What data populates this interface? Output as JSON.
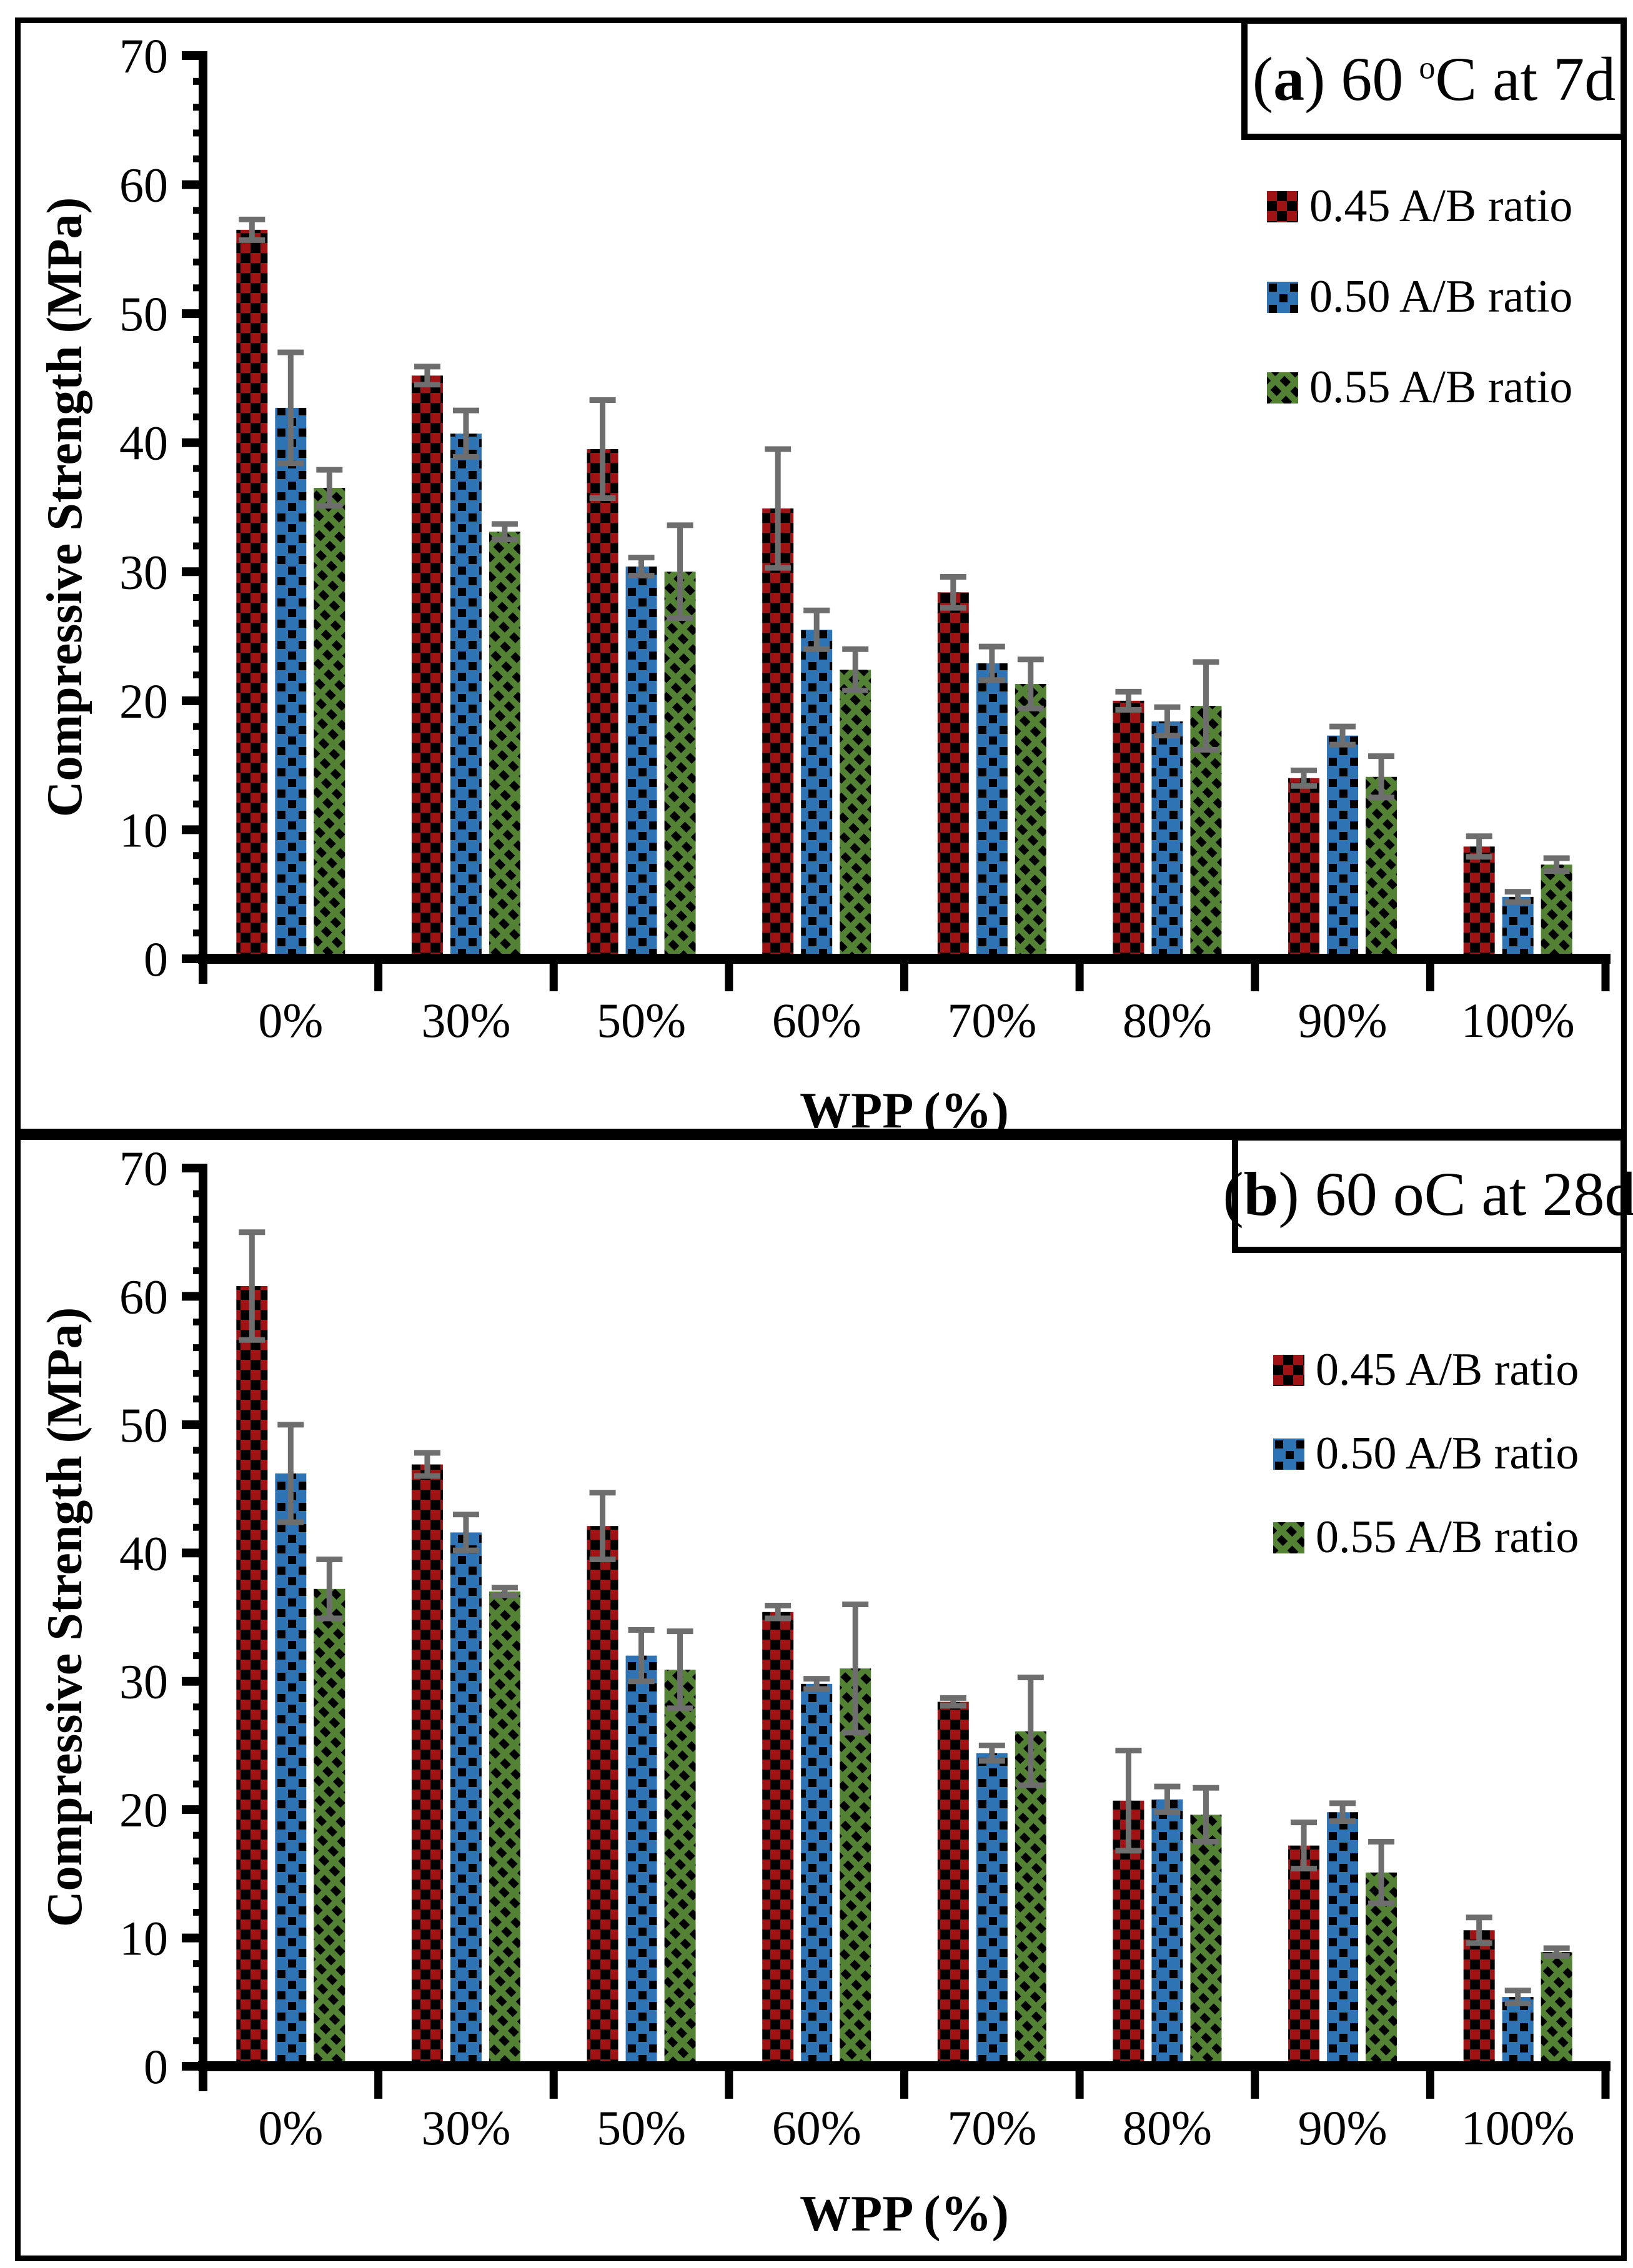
{
  "figure": {
    "background": "#ffffff",
    "border_color": "#000000",
    "error_bar_color": "#6e6e6e"
  },
  "chart_data": [
    {
      "type": "bar",
      "panel": "a",
      "title_text": "(a) 60 oC at 7d",
      "title_parts": {
        "seg1": "(",
        "bold": "a",
        "seg2": ") 60 ",
        "sup": "o",
        "seg3": "C at 7d"
      },
      "xlabel": "WPP (%)",
      "ylabel": "Compressive Strength (MPa)",
      "ylim": [
        0,
        70
      ],
      "ytick_step": 10,
      "yminor_step": 2,
      "grid": false,
      "legend_position": "inside-right",
      "error_bar_color": "#6e6e6e",
      "categories": [
        "0%",
        "30%",
        "50%",
        "60%",
        "70%",
        "80%",
        "90%",
        "100%"
      ],
      "series": [
        {
          "name": "0.45 A/B ratio",
          "color": "#a01315",
          "pattern": "red-black-checkerboard",
          "values": [
            56.5,
            45.2,
            39.5,
            34.9,
            28.4,
            20.0,
            14.0,
            8.7
          ],
          "errors": [
            0.8,
            0.7,
            3.8,
            4.6,
            1.2,
            0.7,
            0.6,
            0.8
          ]
        },
        {
          "name": "0.50 A/B ratio",
          "color": "#2e74b5",
          "pattern": "blue-black-dots",
          "values": [
            42.7,
            40.7,
            30.4,
            25.5,
            22.9,
            18.4,
            17.3,
            4.8
          ],
          "errors": [
            4.3,
            1.8,
            0.7,
            1.5,
            1.3,
            1.1,
            0.7,
            0.4
          ]
        },
        {
          "name": "0.55 A/B ratio",
          "color": "#548235",
          "pattern": "green-black-diagonal-stripes",
          "values": [
            36.5,
            33.1,
            30.0,
            22.4,
            21.3,
            19.6,
            14.1,
            7.3
          ],
          "errors": [
            1.4,
            0.6,
            3.6,
            1.6,
            1.9,
            3.4,
            1.6,
            0.5
          ]
        }
      ]
    },
    {
      "type": "bar",
      "panel": "b",
      "title_text": "(b) 60 oC at 28d",
      "title_parts": {
        "seg1": "(",
        "bold": "b",
        "seg2": ") 60 oC at 28d",
        "sup": "",
        "seg3": ""
      },
      "xlabel": "WPP (%)",
      "ylabel": "Compressive Strength (MPa)",
      "ylim": [
        0,
        70
      ],
      "ytick_step": 10,
      "yminor_step": 2,
      "grid": false,
      "legend_position": "inside-right",
      "error_bar_color": "#6e6e6e",
      "categories": [
        "0%",
        "30%",
        "50%",
        "60%",
        "70%",
        "80%",
        "90%",
        "100%"
      ],
      "series": [
        {
          "name": "0.45 A/B ratio",
          "color": "#a01315",
          "pattern": "red-black-checkerboard",
          "values": [
            60.8,
            46.9,
            42.1,
            35.4,
            28.4,
            20.7,
            17.2,
            10.6
          ],
          "errors": [
            4.2,
            0.9,
            2.6,
            0.5,
            0.3,
            3.9,
            1.8,
            1.0
          ]
        },
        {
          "name": "0.50 A/B ratio",
          "color": "#2e74b5",
          "pattern": "blue-black-dots",
          "values": [
            46.2,
            41.6,
            32.0,
            29.8,
            24.4,
            20.8,
            19.8,
            5.4
          ],
          "errors": [
            3.8,
            1.4,
            2.0,
            0.4,
            0.6,
            1.0,
            0.7,
            0.5
          ]
        },
        {
          "name": "0.55 A/B ratio",
          "color": "#548235",
          "pattern": "green-black-diagonal-stripes",
          "values": [
            37.2,
            37.0,
            30.9,
            31.0,
            26.1,
            19.6,
            15.1,
            8.9
          ],
          "errors": [
            2.3,
            0.3,
            3.0,
            5.0,
            4.2,
            2.1,
            2.4,
            0.3
          ]
        }
      ]
    }
  ]
}
